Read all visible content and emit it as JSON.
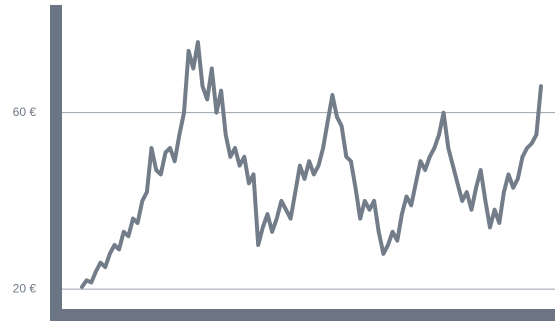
{
  "chart_data": {
    "type": "line",
    "values": [
      20.5,
      22,
      21.5,
      24,
      26,
      25,
      28,
      30,
      29,
      33,
      32,
      36,
      35,
      40,
      42,
      52,
      47,
      46,
      51,
      52,
      49,
      55,
      60,
      74,
      70,
      76,
      66,
      63,
      70,
      60,
      65,
      55,
      50,
      52,
      48,
      50,
      44,
      46,
      30,
      34,
      37,
      33,
      36,
      40,
      38,
      36,
      42,
      48,
      45,
      49,
      46,
      48,
      52,
      58,
      64,
      59,
      57,
      50,
      49,
      43,
      36,
      40,
      38,
      40,
      33,
      28,
      30,
      33,
      31,
      37,
      41,
      39,
      44,
      49,
      47,
      50,
      52,
      55,
      60,
      52,
      48,
      44,
      40,
      42,
      38,
      43,
      47,
      40,
      34,
      38,
      35,
      42,
      46,
      43,
      45,
      50,
      52,
      53,
      55,
      66
    ],
    "color": "#737d8a",
    "ylim": [
      15.5,
      84.4
    ],
    "yticks": [
      {
        "value": 20,
        "label": "20 €"
      },
      {
        "value": 60,
        "label": "60 €"
      }
    ],
    "grid": true
  }
}
